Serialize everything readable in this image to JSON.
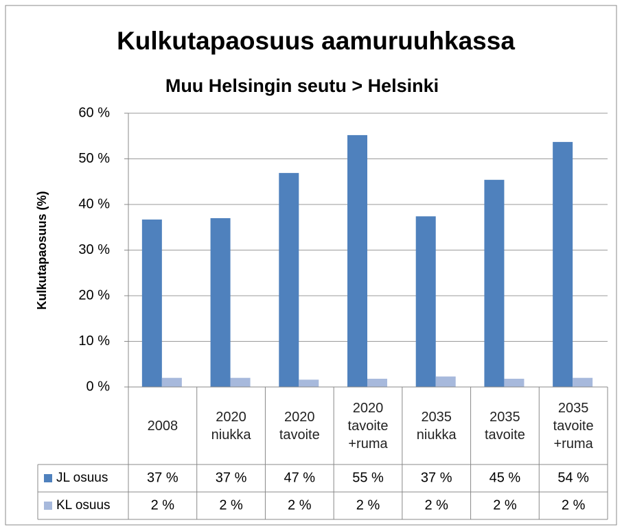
{
  "chart_data": {
    "type": "bar",
    "title": "Kulkutapaosuus aamuruuhkassa",
    "subtitle": "Muu Helsingin seutu > Helsinki",
    "y_label": "Kulkutapaosuus (%)",
    "categories": [
      "2008",
      "2020 niukka",
      "2020 tavoite",
      "2020 tavoite +ruma",
      "2035 niukka",
      "2035 tavoite",
      "2035 tavoite +ruma"
    ],
    "series": [
      {
        "name": "JL osuus",
        "color": "#4f81bd",
        "values": [
          36.7,
          37.0,
          46.9,
          55.2,
          37.4,
          45.4,
          53.7
        ],
        "value_labels": [
          "37 %",
          "37 %",
          "47 %",
          "55 %",
          "37 %",
          "45 %",
          "54 %"
        ]
      },
      {
        "name": "KL osuus",
        "color": "#a7b9dc",
        "values": [
          2.0,
          2.0,
          1.6,
          1.8,
          2.3,
          1.8,
          2.0
        ],
        "value_labels": [
          "2 %",
          "2 %",
          "2 %",
          "2 %",
          "2 %",
          "2 %",
          "2 %"
        ]
      }
    ],
    "ylim": [
      0,
      60
    ],
    "yticks": [
      {
        "value": 0,
        "label": "0 %"
      },
      {
        "value": 10,
        "label": "10 %"
      },
      {
        "value": 20,
        "label": "20 %"
      },
      {
        "value": 30,
        "label": "30 %"
      },
      {
        "value": 40,
        "label": "40 %"
      },
      {
        "value": 50,
        "label": "50 %"
      },
      {
        "value": 60,
        "label": "60 %"
      }
    ],
    "grid": true
  }
}
